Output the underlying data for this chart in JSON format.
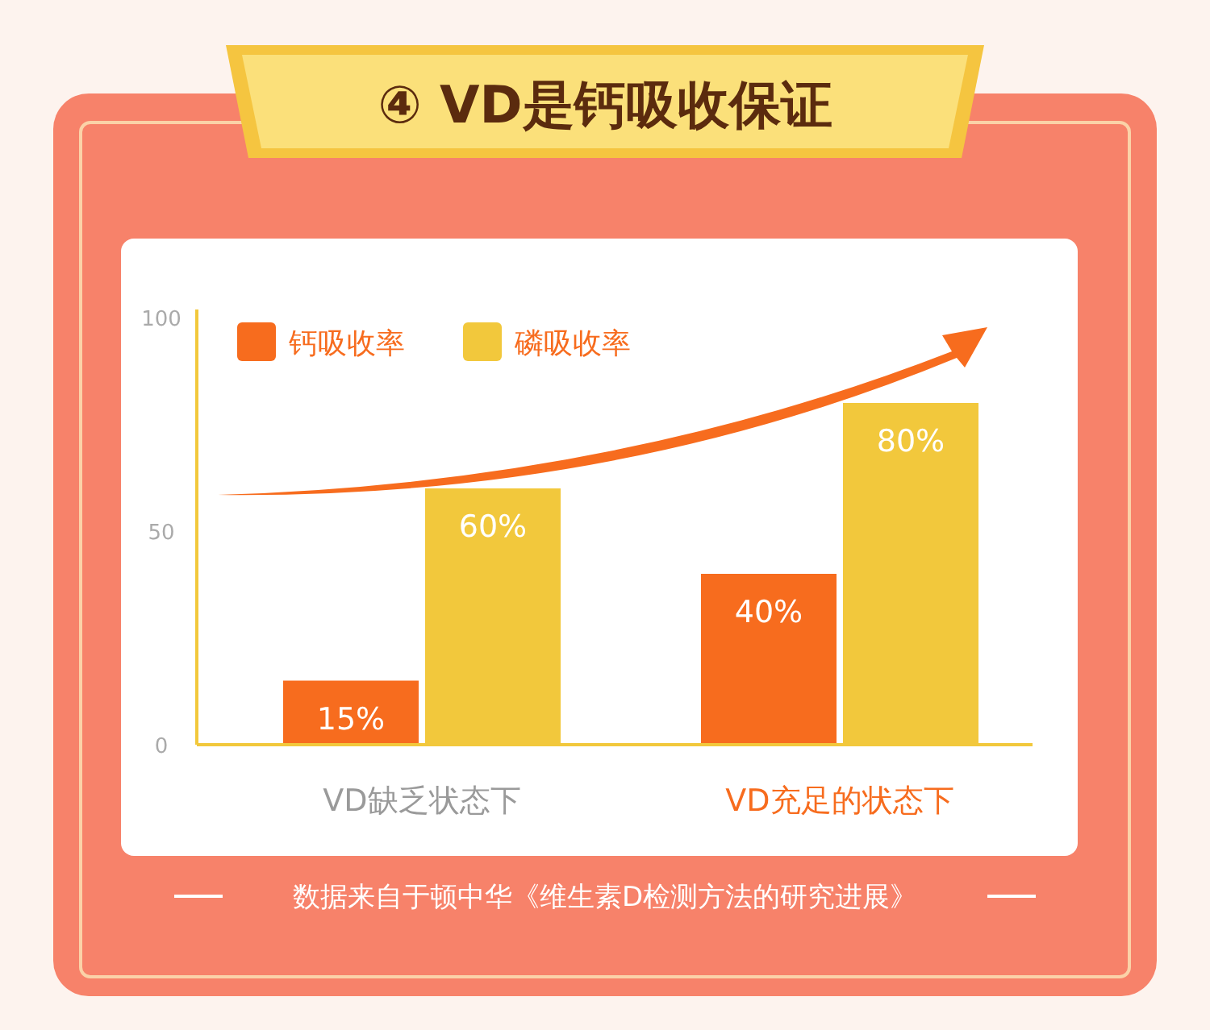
{
  "chart_data": {
    "type": "bar",
    "title": "④ VD是钙吸收保证",
    "categories": [
      "VD缺乏状态下",
      "VD充足的状态下"
    ],
    "series": [
      {
        "name": "钙吸收率",
        "color": "#f76c1e",
        "values": [
          15,
          40
        ],
        "value_labels": [
          "15%",
          "40%"
        ]
      },
      {
        "name": "磷吸收率",
        "color": "#f2c83c",
        "values": [
          60,
          80
        ],
        "value_labels": [
          "60%",
          "80%"
        ]
      }
    ],
    "ylim": [
      0,
      100
    ],
    "yticks": [
      0,
      50,
      100
    ],
    "grid": false,
    "legend": "top left",
    "annotations": [
      "数据来自于顿中华《维生素D检测方法的研究进展》"
    ]
  }
}
